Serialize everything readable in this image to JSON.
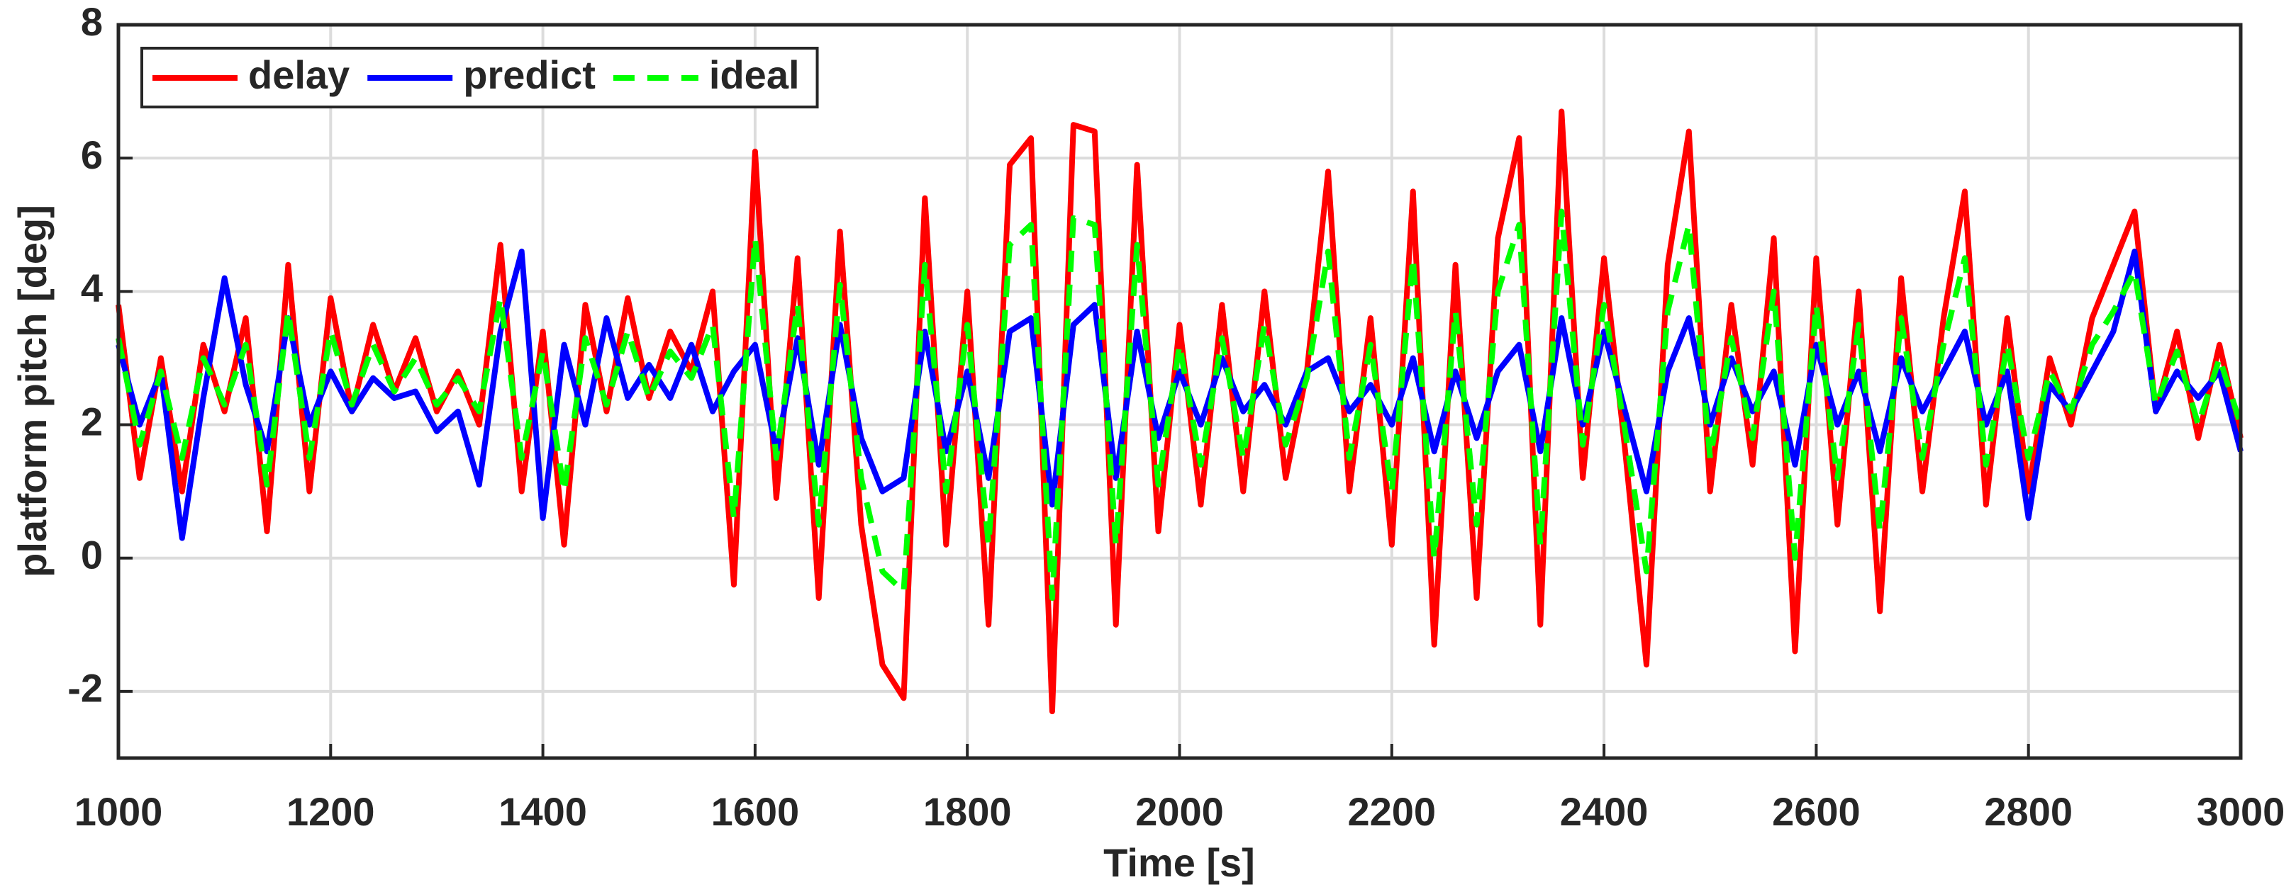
{
  "chart_data": {
    "type": "line",
    "x_label": "Time [s]",
    "y_label": "platform pitch [deg]",
    "x": [
      1000,
      1020,
      1040,
      1060,
      1080,
      1100,
      1120,
      1140,
      1160,
      1180,
      1200,
      1220,
      1240,
      1260,
      1280,
      1300,
      1320,
      1340,
      1360,
      1380,
      1400,
      1420,
      1440,
      1460,
      1480,
      1500,
      1520,
      1540,
      1560,
      1580,
      1600,
      1620,
      1640,
      1660,
      1680,
      1700,
      1720,
      1740,
      1760,
      1780,
      1800,
      1820,
      1840,
      1860,
      1880,
      1900,
      1920,
      1940,
      1960,
      1980,
      2000,
      2020,
      2040,
      2060,
      2080,
      2100,
      2120,
      2140,
      2160,
      2180,
      2200,
      2220,
      2240,
      2260,
      2280,
      2300,
      2320,
      2340,
      2360,
      2380,
      2400,
      2420,
      2440,
      2460,
      2480,
      2500,
      2520,
      2540,
      2560,
      2580,
      2600,
      2620,
      2640,
      2660,
      2680,
      2700,
      2720,
      2740,
      2760,
      2780,
      2800,
      2820,
      2840,
      2860,
      2880,
      2900,
      2920,
      2940,
      2960,
      2980,
      3000
    ],
    "series": [
      {
        "name": "delay",
        "color": "#ff0000",
        "dashed": false,
        "values": [
          3.8,
          1.2,
          3.0,
          1.0,
          3.2,
          2.2,
          3.6,
          0.4,
          4.4,
          1.0,
          3.9,
          2.2,
          3.5,
          2.5,
          3.3,
          2.2,
          2.8,
          2.0,
          4.7,
          1.0,
          3.4,
          0.2,
          3.8,
          2.2,
          3.9,
          2.4,
          3.4,
          2.8,
          4.0,
          -0.4,
          6.1,
          0.9,
          4.5,
          -0.6,
          4.9,
          0.5,
          -1.6,
          -2.1,
          5.4,
          0.2,
          4.0,
          -1.0,
          5.9,
          6.3,
          -2.3,
          6.5,
          6.4,
          -1.0,
          5.9,
          0.4,
          3.5,
          0.8,
          3.8,
          1.0,
          4.0,
          1.2,
          2.8,
          5.8,
          1.0,
          3.6,
          0.2,
          5.5,
          -1.3,
          4.4,
          -0.6,
          4.8,
          6.3,
          -1.0,
          6.7,
          1.2,
          4.5,
          1.6,
          -1.6,
          4.4,
          6.4,
          1.0,
          3.8,
          1.4,
          4.8,
          -1.4,
          4.5,
          0.5,
          4.0,
          -0.8,
          4.2,
          1.0,
          3.6,
          5.5,
          0.8,
          3.6,
          1.0,
          3.0,
          2.0,
          3.6,
          4.4,
          5.2,
          2.2,
          3.4,
          1.8,
          3.2,
          1.8
        ]
      },
      {
        "name": "predict",
        "color": "#0000ff",
        "dashed": false,
        "values": [
          3.2,
          2.0,
          2.8,
          0.3,
          2.4,
          4.2,
          2.6,
          1.6,
          3.6,
          2.0,
          2.8,
          2.2,
          2.7,
          2.4,
          2.5,
          1.9,
          2.2,
          1.1,
          3.4,
          4.6,
          0.6,
          3.2,
          2.0,
          3.6,
          2.4,
          2.9,
          2.4,
          3.2,
          2.2,
          2.8,
          3.2,
          1.6,
          3.3,
          1.4,
          3.5,
          1.8,
          1.0,
          1.2,
          3.4,
          1.6,
          2.8,
          1.2,
          3.4,
          3.6,
          0.8,
          3.5,
          3.8,
          1.2,
          3.4,
          1.8,
          2.8,
          2.0,
          3.0,
          2.2,
          2.6,
          2.0,
          2.8,
          3.0,
          2.2,
          2.6,
          2.0,
          3.0,
          1.6,
          2.8,
          1.8,
          2.8,
          3.2,
          1.6,
          3.6,
          2.0,
          3.4,
          2.2,
          1.0,
          2.8,
          3.6,
          2.0,
          3.0,
          2.2,
          2.8,
          1.4,
          3.2,
          2.0,
          2.8,
          1.6,
          3.0,
          2.2,
          2.8,
          3.4,
          2.0,
          2.8,
          0.6,
          2.6,
          2.2,
          2.8,
          3.4,
          4.6,
          2.2,
          2.8,
          2.4,
          2.8,
          1.6
        ]
      },
      {
        "name": "ideal",
        "color": "#00ff00",
        "dashed": true,
        "values": [
          3.3,
          1.7,
          2.8,
          1.5,
          3.0,
          2.3,
          3.2,
          1.1,
          3.7,
          1.5,
          3.4,
          2.3,
          3.2,
          2.5,
          3.0,
          2.3,
          2.7,
          2.2,
          3.9,
          1.5,
          3.1,
          1.0,
          3.3,
          2.3,
          3.4,
          2.4,
          3.1,
          2.7,
          3.5,
          0.6,
          4.8,
          1.5,
          3.8,
          0.5,
          4.1,
          1.2,
          -0.2,
          -0.5,
          4.4,
          1.0,
          3.5,
          0.2,
          4.7,
          5.0,
          -0.6,
          5.1,
          5.0,
          0.2,
          4.7,
          1.1,
          3.2,
          1.4,
          3.3,
          1.5,
          3.5,
          1.7,
          2.7,
          4.6,
          1.5,
          3.2,
          1.0,
          4.5,
          0.0,
          3.7,
          0.5,
          4.0,
          5.0,
          0.2,
          5.2,
          1.7,
          3.8,
          1.9,
          -0.2,
          3.7,
          5.0,
          1.5,
          3.3,
          1.8,
          4.0,
          0.0,
          3.8,
          1.2,
          3.5,
          0.4,
          3.6,
          1.5,
          3.2,
          4.5,
          1.4,
          3.2,
          1.5,
          2.8,
          2.2,
          3.2,
          3.7,
          4.3,
          2.3,
          3.1,
          2.0,
          3.0,
          2.0
        ]
      }
    ],
    "xlim": [
      1000,
      3000
    ],
    "xticks": [
      1000,
      1200,
      1400,
      1600,
      1800,
      2000,
      2200,
      2400,
      2600,
      2800,
      3000
    ],
    "ylim": [
      -3,
      8
    ],
    "yticks": [
      -2,
      0,
      2,
      4,
      6,
      8
    ],
    "grid": true,
    "legend": "upper left",
    "legend_orientation": "horizontal"
  }
}
